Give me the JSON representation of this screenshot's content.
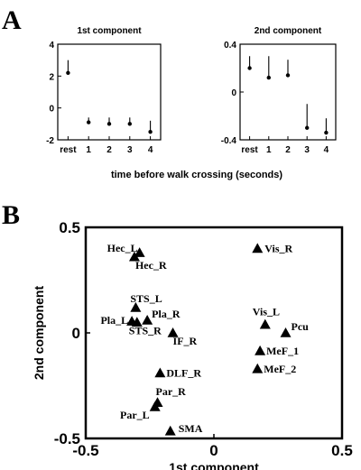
{
  "panel_labels": {
    "a": "A",
    "b": "B"
  },
  "shared_xlabel": "time before walk crossing (seconds)",
  "chart_data": [
    {
      "type": "line",
      "title": "1st component",
      "categories": [
        "rest",
        "1",
        "2",
        "3",
        "4"
      ],
      "series": [
        {
          "values": [
            2.2,
            -0.9,
            -1.0,
            -1.0,
            -1.5
          ],
          "upper": [
            3.0,
            -0.6,
            -0.6,
            -0.6,
            -0.8
          ]
        }
      ],
      "ylim": [
        -2,
        4
      ],
      "yticks": [
        "4",
        "2",
        "0",
        "-2"
      ],
      "error_style": "single-sided whisker"
    },
    {
      "type": "line",
      "title": "2nd component",
      "categories": [
        "rest",
        "1",
        "2",
        "3",
        "4"
      ],
      "series": [
        {
          "values": [
            0.2,
            0.12,
            0.14,
            -0.3,
            -0.34
          ],
          "upper": [
            0.3,
            0.3,
            0.27,
            -0.1,
            -0.22
          ]
        }
      ],
      "ylim": [
        -0.4,
        0.4
      ],
      "yticks": [
        "0.4",
        "0",
        "-0.4"
      ],
      "error_style": "single-sided whisker"
    },
    {
      "type": "scatter",
      "xlabel": "1st component",
      "ylabel": "2nd component",
      "xlim": [
        -0.5,
        0.5
      ],
      "ylim": [
        -0.5,
        0.5
      ],
      "xticks": [
        "-0.5",
        "0",
        "0.5"
      ],
      "yticks": [
        "0.5",
        "0",
        "-0.5"
      ],
      "marker": "triangle",
      "points": [
        {
          "label": "Hec_L",
          "x": -0.29,
          "y": 0.38
        },
        {
          "label": "Hec_R",
          "x": -0.31,
          "y": 0.36
        },
        {
          "label": "Vis_R",
          "x": 0.17,
          "y": 0.4
        },
        {
          "label": "STS_L",
          "x": -0.305,
          "y": 0.12
        },
        {
          "label": "Pla_L",
          "x": -0.32,
          "y": 0.055
        },
        {
          "label": "Pla_R",
          "x": -0.26,
          "y": 0.06
        },
        {
          "label": "STS_R",
          "x": -0.3,
          "y": 0.05
        },
        {
          "label": "IF_R",
          "x": -0.16,
          "y": 0.0
        },
        {
          "label": "Vis_L",
          "x": 0.2,
          "y": 0.04
        },
        {
          "label": "Pcu",
          "x": 0.28,
          "y": 0.0
        },
        {
          "label": "MeF_1",
          "x": 0.18,
          "y": -0.085
        },
        {
          "label": "MeF_2",
          "x": 0.17,
          "y": -0.17
        },
        {
          "label": "DLF_R",
          "x": -0.21,
          "y": -0.19
        },
        {
          "label": "Par_R",
          "x": -0.22,
          "y": -0.33
        },
        {
          "label": "Par_L",
          "x": -0.23,
          "y": -0.35
        },
        {
          "label": "SMA",
          "x": -0.17,
          "y": -0.465
        }
      ]
    }
  ]
}
